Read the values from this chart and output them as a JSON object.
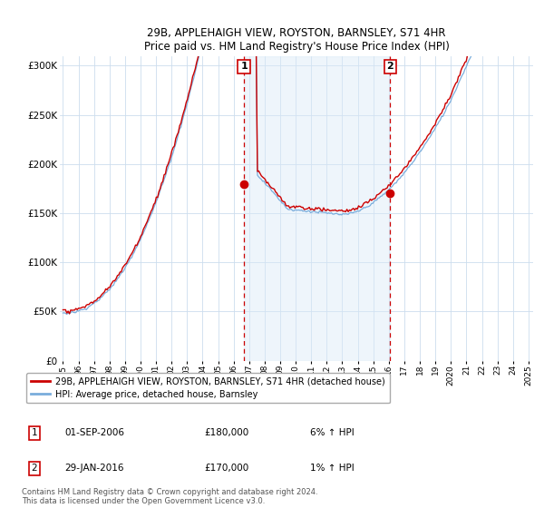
{
  "title1": "29B, APPLEHAIGH VIEW, ROYSTON, BARNSLEY, S71 4HR",
  "title2": "Price paid vs. HM Land Registry's House Price Index (HPI)",
  "ylabel_ticks": [
    "£0",
    "£50K",
    "£100K",
    "£150K",
    "£200K",
    "£250K",
    "£300K"
  ],
  "ytick_vals": [
    0,
    50000,
    100000,
    150000,
    200000,
    250000,
    300000
  ],
  "ylim": [
    0,
    310000
  ],
  "xlim_start": 1994.8,
  "xlim_end": 2025.3,
  "x_tick_years": [
    1995,
    1996,
    1997,
    1998,
    1999,
    2000,
    2001,
    2002,
    2003,
    2004,
    2005,
    2006,
    2007,
    2008,
    2009,
    2010,
    2011,
    2012,
    2013,
    2014,
    2015,
    2016,
    2017,
    2018,
    2019,
    2020,
    2021,
    2022,
    2023,
    2024,
    2025
  ],
  "x_tick_labels": [
    "1995",
    "96",
    "97",
    "98",
    "99",
    "2000",
    "01",
    "02",
    "03",
    "04",
    "05",
    "06",
    "07",
    "08",
    "09",
    "2010",
    "11",
    "12",
    "13",
    "14",
    "15",
    "16",
    "17",
    "18",
    "19",
    "2020",
    "21",
    "22",
    "23",
    "24",
    "2025"
  ],
  "hpi_color": "#7aaddc",
  "price_color": "#cc0000",
  "sale1_x": 2006.67,
  "sale1_y": 180000,
  "sale2_x": 2016.08,
  "sale2_y": 170000,
  "marker_box_color": "#cc0000",
  "shade_color": "#daeaf7",
  "vline_color": "#cc0000",
  "legend_text1": "29B, APPLEHAIGH VIEW, ROYSTON, BARNSLEY, S71 4HR (detached house)",
  "legend_text2": "HPI: Average price, detached house, Barnsley",
  "footnote1": "Contains HM Land Registry data © Crown copyright and database right 2024.",
  "footnote2": "This data is licensed under the Open Government Licence v3.0.",
  "table_rows": [
    {
      "num": "1",
      "date": "01-SEP-2006",
      "price": "£180,000",
      "hpi": "6% ↑ HPI"
    },
    {
      "num": "2",
      "date": "29-JAN-2016",
      "price": "£170,000",
      "hpi": "1% ↑ HPI"
    }
  ],
  "grid_color": "#ccddee",
  "bg_color": "#ffffff"
}
